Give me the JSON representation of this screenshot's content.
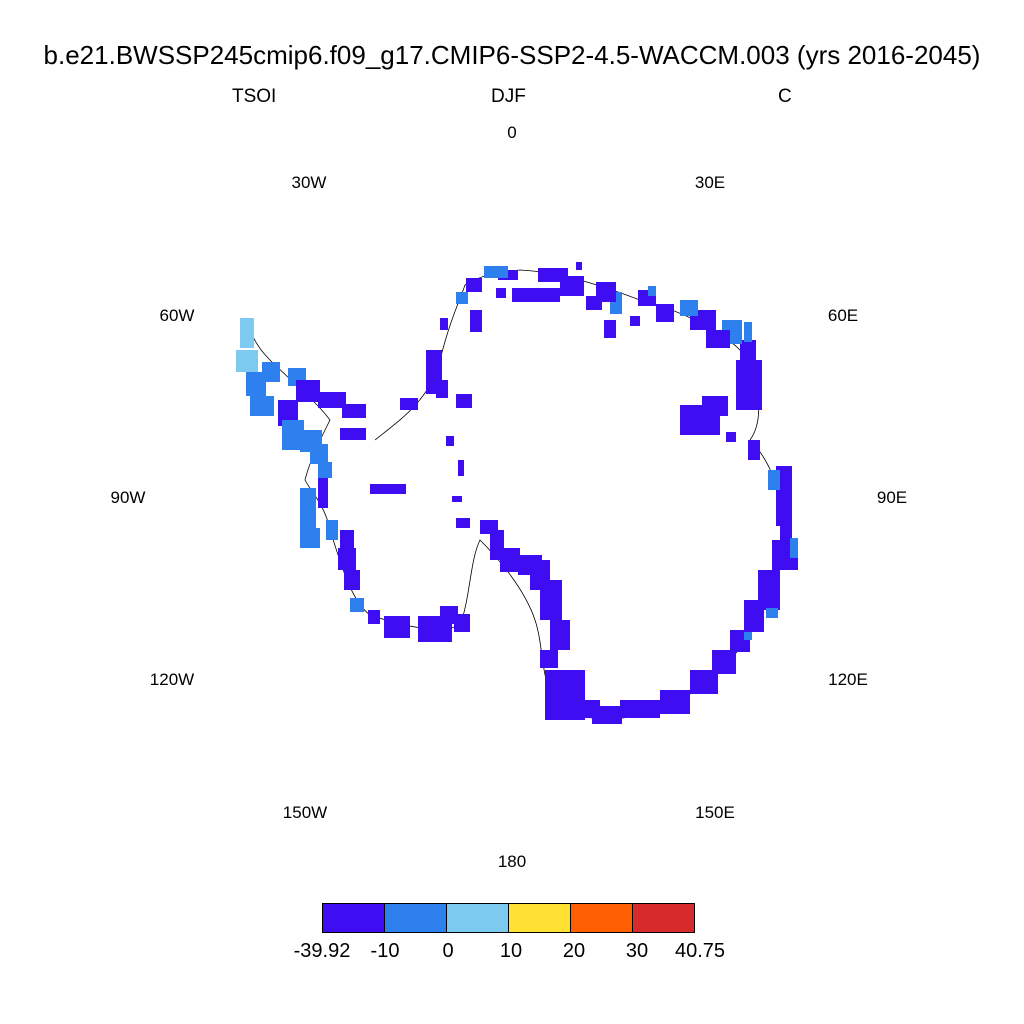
{
  "title": "b.e21.BWSSP245cmip6.f09_g17.CMIP6-SSP2-4.5-WACCM.003 (yrs 2016-2045)",
  "left_string": "TSOI",
  "center_string": "DJF",
  "right_string": "C",
  "longitude_labels": [
    "0",
    "30E",
    "60E",
    "90E",
    "120E",
    "150E",
    "180",
    "150W",
    "120W",
    "90W",
    "60W",
    "30W"
  ],
  "colorbar": {
    "colors": [
      "#3f0df2",
      "#2e80ef",
      "#7ccaef",
      "#ffe033",
      "#ff5f00",
      "#d72b2b"
    ],
    "labels": [
      "-39.92",
      "-10",
      "0",
      "10",
      "20",
      "30",
      "40.75"
    ]
  },
  "chart_data": {
    "type": "heatmap",
    "projection": "south polar stereographic",
    "variable": "TSOI",
    "season": "DJF",
    "units": "C",
    "min": -39.92,
    "max": 40.75,
    "levels": [
      -10,
      0,
      10,
      20,
      30
    ],
    "dominant_category": "-39.92 to -10 along almost the whole coastal ring",
    "warmer_regions": "-10 to 0 and 0 to 10 along the Antarctic Peninsula and near 60E and 90E coasts"
  }
}
